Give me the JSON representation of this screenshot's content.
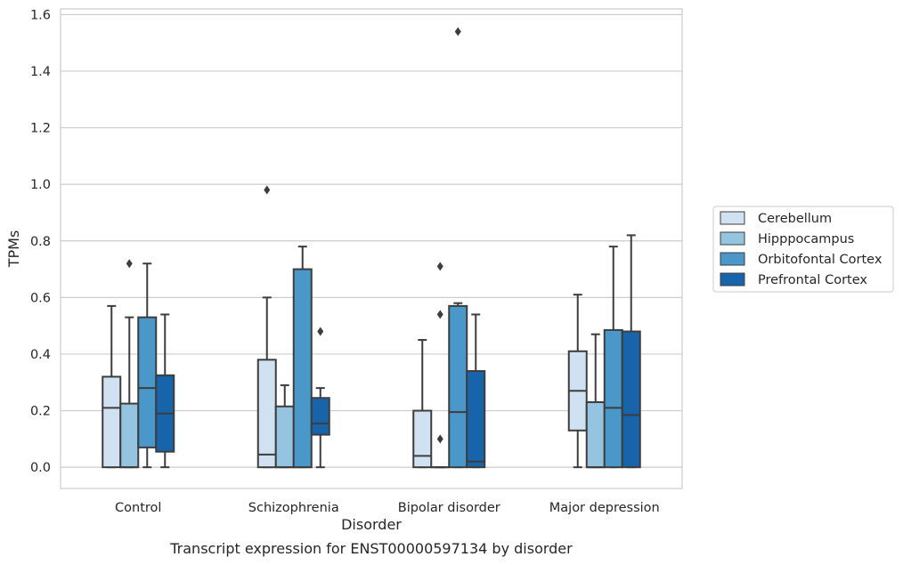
{
  "chart_data": {
    "type": "box",
    "xlabel": "Disorder",
    "ylabel": "TPMs",
    "caption": "Transcript expression for ENST00000597134 by disorder",
    "ylim": [
      -0.075,
      1.62
    ],
    "yticks": [
      0.0,
      0.2,
      0.4,
      0.6,
      0.8,
      1.0,
      1.2,
      1.4,
      1.6
    ],
    "ytick_labels": [
      "0.0",
      "0.2",
      "0.4",
      "0.6",
      "0.8",
      "1.0",
      "1.2",
      "1.4",
      "1.6"
    ],
    "grid": "horizontal",
    "legend_position": "right",
    "categories": [
      "Control",
      "Schizophrenia",
      "Bipolar disorder",
      "Major depression"
    ],
    "series": [
      {
        "name": "Cerebellum",
        "color": "#d0e1f2",
        "boxes": [
          {
            "whislo": 0.0,
            "q1": 0.0,
            "med": 0.21,
            "q3": 0.32,
            "whishi": 0.57,
            "fliers": []
          },
          {
            "whislo": 0.0,
            "q1": 0.0,
            "med": 0.045,
            "q3": 0.38,
            "whishi": 0.6,
            "fliers": [
              0.98
            ]
          },
          {
            "whislo": 0.0,
            "q1": 0.0,
            "med": 0.04,
            "q3": 0.2,
            "whishi": 0.45,
            "fliers": []
          },
          {
            "whislo": 0.0,
            "q1": 0.13,
            "med": 0.27,
            "q3": 0.41,
            "whishi": 0.61,
            "fliers": []
          }
        ]
      },
      {
        "name": "Hipppocampus",
        "color": "#94c4df",
        "boxes": [
          {
            "whislo": 0.0,
            "q1": 0.0,
            "med": 0.0,
            "q3": 0.225,
            "whishi": 0.53,
            "fliers": [
              0.72
            ]
          },
          {
            "whislo": 0.0,
            "q1": 0.0,
            "med": 0.0,
            "q3": 0.215,
            "whishi": 0.29,
            "fliers": []
          },
          {
            "whislo": 0.0,
            "q1": 0.0,
            "med": 0.0,
            "q3": 0.0,
            "whishi": 0.0,
            "fliers": [
              0.1,
              0.54,
              0.71
            ]
          },
          {
            "whislo": 0.0,
            "q1": 0.0,
            "med": 0.0,
            "q3": 0.23,
            "whishi": 0.47,
            "fliers": []
          }
        ]
      },
      {
        "name": "Orbitofontal Cortex",
        "color": "#4a98c9",
        "boxes": [
          {
            "whislo": 0.0,
            "q1": 0.07,
            "med": 0.28,
            "q3": 0.53,
            "whishi": 0.72,
            "fliers": []
          },
          {
            "whislo": 0.0,
            "q1": 0.0,
            "med": 0.0,
            "q3": 0.7,
            "whishi": 0.78,
            "fliers": []
          },
          {
            "whislo": 0.0,
            "q1": 0.0,
            "med": 0.195,
            "q3": 0.57,
            "whishi": 0.58,
            "fliers": [
              1.54
            ]
          },
          {
            "whislo": 0.0,
            "q1": 0.0,
            "med": 0.21,
            "q3": 0.485,
            "whishi": 0.78,
            "fliers": []
          }
        ]
      },
      {
        "name": "Prefrontal Cortex",
        "color": "#1764ab",
        "boxes": [
          {
            "whislo": 0.0,
            "q1": 0.055,
            "med": 0.19,
            "q3": 0.325,
            "whishi": 0.54,
            "fliers": []
          },
          {
            "whislo": 0.0,
            "q1": 0.115,
            "med": 0.155,
            "q3": 0.245,
            "whishi": 0.28,
            "fliers": [
              0.48
            ]
          },
          {
            "whislo": 0.0,
            "q1": 0.0,
            "med": 0.02,
            "q3": 0.34,
            "whishi": 0.54,
            "fliers": []
          },
          {
            "whislo": 0.0,
            "q1": 0.0,
            "med": 0.185,
            "q3": 0.48,
            "whishi": 0.82,
            "fliers": []
          }
        ]
      }
    ]
  }
}
